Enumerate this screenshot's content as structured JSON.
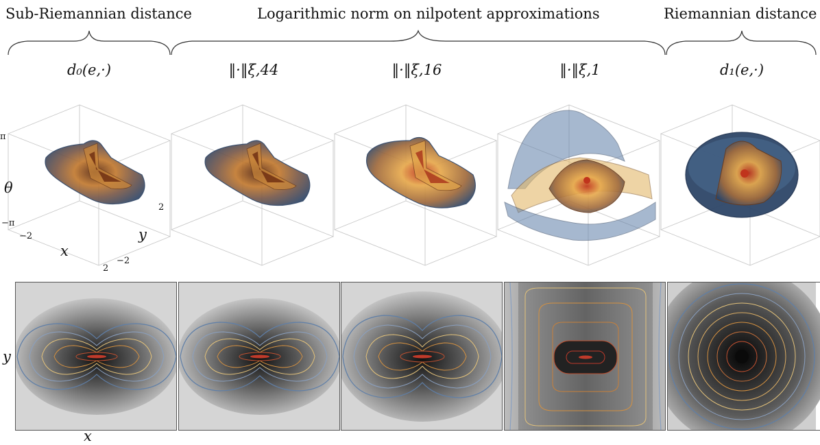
{
  "groups": {
    "left": "Sub-Riemannian distance",
    "middle": "Logarithmic norm on nilpotent approximations",
    "right": "Riemannian distance"
  },
  "panels": [
    {
      "title": "d₀(e,·)"
    },
    {
      "title": "‖·‖ξ,44"
    },
    {
      "title": "‖·‖ξ,16"
    },
    {
      "title": "‖·‖ξ,1"
    },
    {
      "title": "d₁(e,·)"
    }
  ],
  "axes3d": {
    "theta_label": "θ",
    "x_label": "x",
    "y_label": "y",
    "theta_ticks": [
      "π",
      "−π"
    ],
    "x_ticks": [
      "−2",
      "2"
    ],
    "y_ticks": [
      "2",
      "−2"
    ]
  },
  "axes2d": {
    "x_label": "x",
    "y_label": "y"
  },
  "colors": {
    "outer_shell": "#34506f",
    "mid_shell": "#e0a34a",
    "inner_shell": "#a83a1a",
    "contour_blue": "#5f7fa8",
    "contour_yellow": "#e3c27a",
    "contour_orange": "#d59140",
    "contour_red": "#c03a2a"
  }
}
